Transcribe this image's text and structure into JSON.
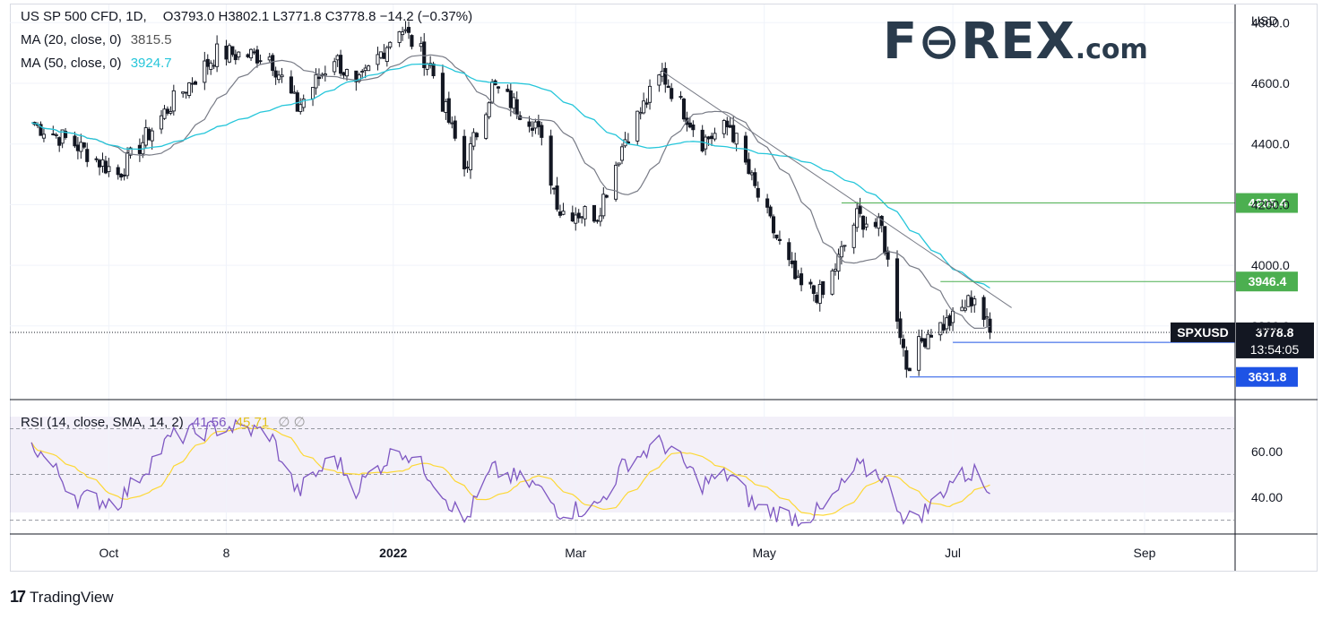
{
  "legend": {
    "symbol": "US SP 500 CFD, 1D,",
    "ohlc": "O3793.0  H3802.1  L3771.8  C3778.8  −14.2 (−0.37%)",
    "ma20_label": "MA (20, close, 0)",
    "ma20_value": "3815.5",
    "ma50_label": "MA (50, close, 0)",
    "ma50_value": "3924.7",
    "rsi_label": "RSI (14, close, SMA, 14, 2)",
    "rsi_value": "41.56",
    "rsi_sma_value": "45.71",
    "rsi_empty": "∅ ∅"
  },
  "logo": {
    "main": "F⊖REX",
    "suffix": ".com"
  },
  "footer": {
    "brand": "TradingView"
  },
  "colors": {
    "up": "#131722",
    "down": "#131722",
    "ma20": "#787b86",
    "ma50": "#26c6da",
    "rsi": "#7e57c2",
    "rsi_sma": "#fdd835",
    "green_level": "#4caf50",
    "blue_level": "#1e53e5",
    "price_label": "#131722"
  },
  "chart_data": {
    "type": "candlestick",
    "currency": "USD",
    "y_ticks": [
      "4800.0",
      "4600.0",
      "4400.0",
      "4200.0",
      "4000.0",
      "3800.0"
    ],
    "ylim": [
      3560,
      4860
    ],
    "x_ticks": [
      "Oct",
      "8",
      "2022",
      "Mar",
      "May",
      "Jul",
      "Sep"
    ],
    "price_anchors": [
      {
        "date": "2021-09-06",
        "close": 4470
      },
      {
        "date": "2021-09-20",
        "close": 4400
      },
      {
        "date": "2021-10-04",
        "close": 4300
      },
      {
        "date": "2021-10-21",
        "close": 4530
      },
      {
        "date": "2021-11-05",
        "close": 4700
      },
      {
        "date": "2021-11-22",
        "close": 4690
      },
      {
        "date": "2021-12-01",
        "close": 4520
      },
      {
        "date": "2021-12-13",
        "close": 4690
      },
      {
        "date": "2021-12-20",
        "close": 4580
      },
      {
        "date": "2022-01-03",
        "close": 4790
      },
      {
        "date": "2022-01-13",
        "close": 4660
      },
      {
        "date": "2022-01-24",
        "close": 4320
      },
      {
        "date": "2022-02-02",
        "close": 4590
      },
      {
        "date": "2022-02-16",
        "close": 4470
      },
      {
        "date": "2022-02-24",
        "close": 4180
      },
      {
        "date": "2022-03-08",
        "close": 4170
      },
      {
        "date": "2022-03-17",
        "close": 4420
      },
      {
        "date": "2022-03-29",
        "close": 4630
      },
      {
        "date": "2022-04-11",
        "close": 4410
      },
      {
        "date": "2022-04-20",
        "close": 4460
      },
      {
        "date": "2022-04-28",
        "close": 4250
      },
      {
        "date": "2022-05-12",
        "close": 3930
      },
      {
        "date": "2022-05-20",
        "close": 3900
      },
      {
        "date": "2022-05-31",
        "close": 4160
      },
      {
        "date": "2022-06-08",
        "close": 4120
      },
      {
        "date": "2022-06-16",
        "close": 3670
      },
      {
        "date": "2022-06-23",
        "close": 3780
      },
      {
        "date": "2022-07-01",
        "close": 3820
      },
      {
        "date": "2022-07-08",
        "close": 3900
      },
      {
        "date": "2022-07-13",
        "close": 3778.8
      }
    ],
    "ma20_latest": 3815.5,
    "ma50_latest": 3924.7,
    "levels": [
      {
        "value": "4205.4",
        "color": "green",
        "from": "2022-05-26"
      },
      {
        "value": "3946.4",
        "color": "green",
        "from": "2022-06-27"
      },
      {
        "value": "3745.7",
        "color": "blue",
        "from": "2022-07-01"
      },
      {
        "value": "3631.8",
        "color": "blue",
        "from": "2022-06-17"
      }
    ],
    "trendline": {
      "from_date": "2022-03-29",
      "from": 4640,
      "to_date": "2022-07-20",
      "to": 3860
    },
    "last_price": {
      "symbol": "SPXUSD",
      "value": "3778.8",
      "countdown": "13:54:05"
    },
    "rsi": {
      "ticks": [
        "60.00",
        "40.00"
      ],
      "band": [
        30,
        70
      ],
      "ylim": [
        24,
        78
      ],
      "anchors": [
        {
          "date": "2021-09-06",
          "value": 64
        },
        {
          "date": "2021-09-21",
          "value": 40
        },
        {
          "date": "2021-10-04",
          "value": 38
        },
        {
          "date": "2021-10-21",
          "value": 66
        },
        {
          "date": "2021-11-08",
          "value": 71
        },
        {
          "date": "2021-11-22",
          "value": 68
        },
        {
          "date": "2021-12-01",
          "value": 42
        },
        {
          "date": "2021-12-13",
          "value": 58
        },
        {
          "date": "2021-12-20",
          "value": 44
        },
        {
          "date": "2022-01-03",
          "value": 62
        },
        {
          "date": "2022-01-13",
          "value": 50
        },
        {
          "date": "2022-01-24",
          "value": 29
        },
        {
          "date": "2022-02-02",
          "value": 52
        },
        {
          "date": "2022-02-16",
          "value": 45
        },
        {
          "date": "2022-02-24",
          "value": 34
        },
        {
          "date": "2022-03-08",
          "value": 36
        },
        {
          "date": "2022-03-17",
          "value": 55
        },
        {
          "date": "2022-03-29",
          "value": 64
        },
        {
          "date": "2022-04-11",
          "value": 46
        },
        {
          "date": "2022-04-20",
          "value": 50
        },
        {
          "date": "2022-04-28",
          "value": 36
        },
        {
          "date": "2022-05-12",
          "value": 31
        },
        {
          "date": "2022-05-20",
          "value": 34
        },
        {
          "date": "2022-05-31",
          "value": 53
        },
        {
          "date": "2022-06-08",
          "value": 50
        },
        {
          "date": "2022-06-16",
          "value": 30
        },
        {
          "date": "2022-06-23",
          "value": 35
        },
        {
          "date": "2022-07-01",
          "value": 48
        },
        {
          "date": "2022-07-08",
          "value": 51
        },
        {
          "date": "2022-07-13",
          "value": 41.56
        }
      ],
      "sma_latest": 45.71
    }
  }
}
